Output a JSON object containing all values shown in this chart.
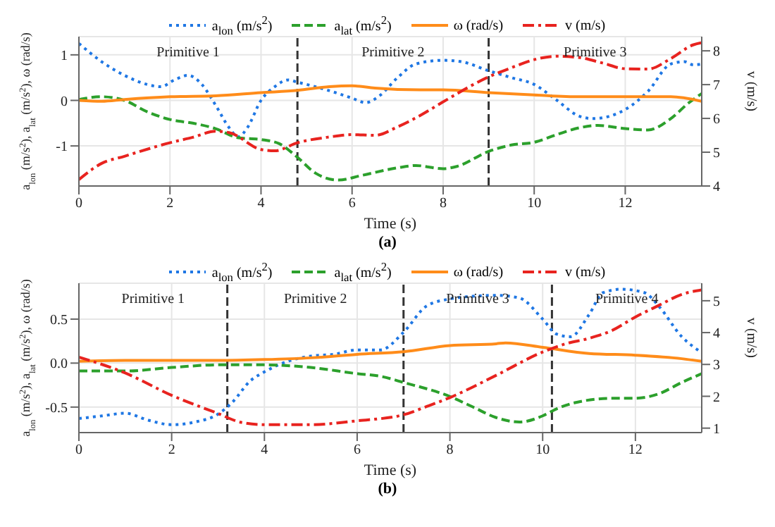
{
  "chart_data": [
    {
      "type": "line",
      "title": "(a)",
      "xlabel": "Time (s)",
      "ylabel": "a$_{lon}$ (m/s$^{2}$), a$_{lat}$ (m/s$^{2}$), ω (rad/s)",
      "y2label": "v (m/s)",
      "xlim": [
        0,
        13.68
      ],
      "xticks": [
        0,
        2,
        4,
        6,
        8,
        10,
        12
      ],
      "ylim": [
        -1.88,
        1.4
      ],
      "yticks": [
        -1,
        0,
        1
      ],
      "y2lim": [
        4,
        8.42
      ],
      "y2ticks": [
        4,
        5,
        6,
        7,
        8
      ],
      "grid": true,
      "legend": "top",
      "marker": "none",
      "ref_lines": [
        {
          "axis": "x",
          "value": 4.8,
          "color": "#333333",
          "line_style": "dashed"
        },
        {
          "axis": "x",
          "value": 9.0,
          "color": "#333333",
          "line_style": "dashed"
        }
      ],
      "annotations": [
        "Primitive 1",
        "Primitive 2",
        "Primitive 3"
      ],
      "series": [
        {
          "name": "a$_{lon}$ (m/s$^{2}$)",
          "color": "#1f77e4",
          "line_style": "dotted",
          "x": [
            0,
            0.5,
            1,
            1.5,
            1.8,
            2.1,
            2.4,
            2.7,
            3.0,
            3.3,
            3.5,
            3.7,
            4.0,
            4.3,
            4.6,
            4.8,
            5.2,
            5.7,
            6.0,
            6.3,
            6.6,
            7.0,
            7.4,
            8.0,
            8.4,
            9.0,
            9.5,
            10,
            10.5,
            11,
            11.3,
            12,
            12.5,
            13,
            13.3,
            13.5,
            13.68
          ],
          "values": [
            1.25,
            0.85,
            0.55,
            0.35,
            0.3,
            0.45,
            0.55,
            0.35,
            -0.1,
            -0.6,
            -0.8,
            -0.6,
            0,
            0.3,
            0.45,
            0.4,
            0.3,
            0.15,
            0.05,
            -0.05,
            0.1,
            0.5,
            0.8,
            0.88,
            0.85,
            0.65,
            0.5,
            0.35,
            0,
            -0.35,
            -0.4,
            -0.2,
            0.2,
            0.8,
            0.85,
            0.78,
            0.8
          ]
        },
        {
          "name": "a$_{lat}$ (m/s$^{2}$)",
          "color": "#2ca02c",
          "line_style": "dashed",
          "x": [
            0,
            0.5,
            1,
            1.5,
            2,
            2.5,
            3,
            3.5,
            4,
            4.4,
            4.8,
            5.2,
            5.7,
            6.2,
            7,
            7.4,
            8,
            8.3,
            9,
            9.5,
            10,
            10.5,
            11,
            11.4,
            12,
            12.5,
            13,
            13.4,
            13.68
          ],
          "values": [
            0.02,
            0.08,
            0,
            -0.25,
            -0.42,
            -0.5,
            -0.62,
            -0.82,
            -0.86,
            -0.95,
            -1.25,
            -1.6,
            -1.75,
            -1.65,
            -1.48,
            -1.43,
            -1.5,
            -1.45,
            -1.12,
            -0.98,
            -0.92,
            -0.75,
            -0.6,
            -0.55,
            -0.62,
            -0.65,
            -0.4,
            -0.05,
            0.15
          ]
        },
        {
          "name": "ω (rad/s)",
          "color": "#ff8c1a",
          "line_style": "solid",
          "x": [
            0,
            0.5,
            1,
            2,
            3,
            4,
            4.8,
            5.5,
            6,
            6.5,
            7.5,
            8,
            9,
            10,
            11,
            12,
            13,
            13.68
          ],
          "values": [
            0,
            -0.02,
            0.02,
            0.08,
            0.1,
            0.17,
            0.22,
            0.3,
            0.32,
            0.27,
            0.23,
            0.23,
            0.17,
            0.12,
            0.08,
            0.08,
            0.08,
            -0.02
          ]
        },
        {
          "name": "v (m/s)",
          "color": "#e8231f",
          "line_style": "dashdot",
          "axis": "y2",
          "x": [
            0,
            0.5,
            1,
            2,
            2.5,
            3,
            3.3,
            4,
            4.3,
            4.8,
            5.5,
            6,
            6.5,
            7,
            7.5,
            8,
            9,
            9.5,
            10,
            10.5,
            11,
            11.5,
            12,
            12.5,
            13,
            13.5,
            13.68
          ],
          "values": [
            4.19,
            4.67,
            4.88,
            5.28,
            5.44,
            5.62,
            5.58,
            5.08,
            5.04,
            5.28,
            5.45,
            5.52,
            5.5,
            5.75,
            6.09,
            6.49,
            7.23,
            7.5,
            7.74,
            7.84,
            7.8,
            7.64,
            7.47,
            7.46,
            7.77,
            8.18,
            8.24
          ]
        }
      ]
    },
    {
      "type": "line",
      "title": "(b)",
      "xlabel": "Time (s)",
      "ylabel": "a$_{lon}$ (m/s$^{2}$), a$_{lat}$ (m/s$^{2}$), ω (rad/s)",
      "y2label": "v (m/s)",
      "xlim": [
        0,
        13.43
      ],
      "xticks": [
        0,
        2,
        4,
        6,
        8,
        10,
        12
      ],
      "ylim": [
        -0.79,
        0.908
      ],
      "yticks": [
        -0.5,
        {
          "value": 0,
          "label": "0.0"
        },
        0.5
      ],
      "y2lim": [
        0.86,
        5.55
      ],
      "y2ticks": [
        1,
        2,
        3,
        4,
        5
      ],
      "grid": true,
      "legend": "top",
      "marker": "none",
      "ref_lines": [
        {
          "axis": "x",
          "value": 3.2,
          "color": "#333333",
          "line_style": "dashed"
        },
        {
          "axis": "x",
          "value": 7.0,
          "color": "#333333",
          "line_style": "dashed"
        },
        {
          "axis": "x",
          "value": 10.2,
          "color": "#333333",
          "line_style": "dashed"
        }
      ],
      "annotations": [
        "Primitive 1",
        "Primitive 2",
        "Primitive 3",
        "Primitive 4"
      ],
      "series": [
        {
          "name": "a$_{lon}$ (m/s$^{2}$)",
          "color": "#1f77e4",
          "line_style": "dotted",
          "x": [
            0,
            0.5,
            1,
            1.5,
            2,
            2.5,
            3,
            3.3,
            3.7,
            4,
            4.5,
            5,
            5.5,
            6,
            6.5,
            7,
            7.5,
            8,
            8.5,
            9,
            9.5,
            10,
            10.3,
            10.6,
            11,
            11.3,
            11.7,
            12.2,
            12.5,
            13,
            13.43
          ],
          "values": [
            -0.63,
            -0.6,
            -0.57,
            -0.65,
            -0.7,
            -0.67,
            -0.58,
            -0.45,
            -0.2,
            -0.1,
            0.02,
            0.08,
            0.1,
            0.15,
            0.15,
            0.35,
            0.65,
            0.73,
            0.76,
            0.77,
            0.74,
            0.5,
            0.33,
            0.3,
            0.55,
            0.8,
            0.84,
            0.8,
            0.65,
            0.3,
            0.12
          ]
        },
        {
          "name": "a$_{lat}$ (m/s$^{2}$)",
          "color": "#2ca02c",
          "line_style": "dashed",
          "x": [
            0,
            1,
            2,
            3,
            4,
            5,
            6,
            6.5,
            7,
            8,
            8.5,
            9,
            9.5,
            10,
            10.3,
            10.7,
            11.5,
            12,
            12.5,
            13,
            13.43
          ],
          "values": [
            -0.09,
            -0.09,
            -0.05,
            -0.02,
            -0.02,
            -0.05,
            -0.12,
            -0.15,
            -0.22,
            -0.38,
            -0.5,
            -0.62,
            -0.67,
            -0.6,
            -0.52,
            -0.45,
            -0.4,
            -0.4,
            -0.35,
            -0.22,
            -0.12
          ]
        },
        {
          "name": "ω (rad/s)",
          "color": "#ff8c1a",
          "line_style": "solid",
          "x": [
            0,
            1,
            3,
            4,
            5,
            6,
            7,
            8,
            9,
            9.2,
            10,
            11,
            12,
            13,
            13.43
          ],
          "values": [
            0.02,
            0.03,
            0.03,
            0.04,
            0.06,
            0.1,
            0.13,
            0.2,
            0.22,
            0.23,
            0.18,
            0.11,
            0.09,
            0.05,
            0.02
          ]
        },
        {
          "name": "v (m/s)",
          "color": "#e8231f",
          "line_style": "dashdot",
          "axis": "y2",
          "x": [
            0,
            1,
            2,
            3,
            3.5,
            4,
            5,
            6,
            7,
            7.5,
            8,
            9,
            10,
            10.5,
            11,
            11.5,
            12,
            12.5,
            13,
            13.43
          ],
          "values": [
            3.23,
            2.73,
            2.03,
            1.46,
            1.18,
            1.11,
            1.11,
            1.23,
            1.42,
            1.68,
            1.96,
            2.66,
            3.39,
            3.65,
            3.82,
            4.07,
            4.49,
            4.85,
            5.2,
            5.34
          ]
        }
      ]
    }
  ]
}
